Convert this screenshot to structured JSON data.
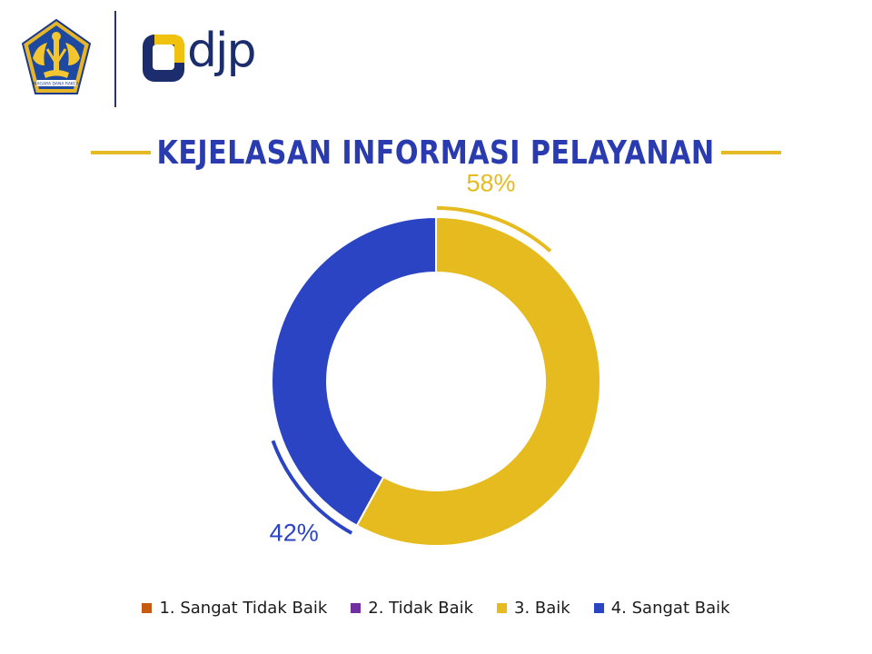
{
  "header": {
    "emblem_caption": "NAGARA DANA RAKCA",
    "brand_text": "djp"
  },
  "chart_data": {
    "type": "pie",
    "variant": "donut",
    "title": "KEJELASAN INFORMASI PELAYANAN",
    "categories": [
      "1. Sangat Tidak Baik",
      "2. Tidak Baik",
      "3. Baik",
      "4. Sangat Baik"
    ],
    "values": [
      0,
      0,
      58,
      42
    ],
    "value_labels": [
      "",
      "",
      "58%",
      "42%"
    ],
    "colors": [
      "#c55a11",
      "#7030a0",
      "#e6bb1f",
      "#2a44c4"
    ],
    "legend_position": "bottom"
  },
  "colors": {
    "title": "#2a3bb0",
    "accent_line": "#e4bb25",
    "brand_navy": "#1c2d6e"
  }
}
